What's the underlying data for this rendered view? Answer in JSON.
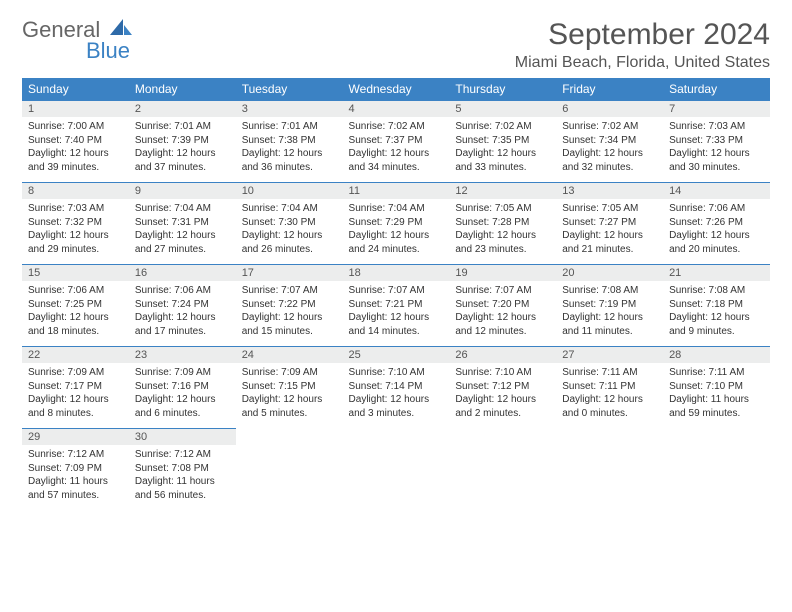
{
  "logo": {
    "text1": "General",
    "text2": "Blue"
  },
  "title": "September 2024",
  "location": "Miami Beach, Florida, United States",
  "colors": {
    "header_bg": "#3b82c4",
    "header_text": "#ffffff",
    "daynum_bg": "#eceded",
    "text": "#333333",
    "title_text": "#555555"
  },
  "weekdays": [
    "Sunday",
    "Monday",
    "Tuesday",
    "Wednesday",
    "Thursday",
    "Friday",
    "Saturday"
  ],
  "weeks": [
    [
      {
        "n": "1",
        "sr": "Sunrise: 7:00 AM",
        "ss": "Sunset: 7:40 PM",
        "d1": "Daylight: 12 hours",
        "d2": "and 39 minutes."
      },
      {
        "n": "2",
        "sr": "Sunrise: 7:01 AM",
        "ss": "Sunset: 7:39 PM",
        "d1": "Daylight: 12 hours",
        "d2": "and 37 minutes."
      },
      {
        "n": "3",
        "sr": "Sunrise: 7:01 AM",
        "ss": "Sunset: 7:38 PM",
        "d1": "Daylight: 12 hours",
        "d2": "and 36 minutes."
      },
      {
        "n": "4",
        "sr": "Sunrise: 7:02 AM",
        "ss": "Sunset: 7:37 PM",
        "d1": "Daylight: 12 hours",
        "d2": "and 34 minutes."
      },
      {
        "n": "5",
        "sr": "Sunrise: 7:02 AM",
        "ss": "Sunset: 7:35 PM",
        "d1": "Daylight: 12 hours",
        "d2": "and 33 minutes."
      },
      {
        "n": "6",
        "sr": "Sunrise: 7:02 AM",
        "ss": "Sunset: 7:34 PM",
        "d1": "Daylight: 12 hours",
        "d2": "and 32 minutes."
      },
      {
        "n": "7",
        "sr": "Sunrise: 7:03 AM",
        "ss": "Sunset: 7:33 PM",
        "d1": "Daylight: 12 hours",
        "d2": "and 30 minutes."
      }
    ],
    [
      {
        "n": "8",
        "sr": "Sunrise: 7:03 AM",
        "ss": "Sunset: 7:32 PM",
        "d1": "Daylight: 12 hours",
        "d2": "and 29 minutes."
      },
      {
        "n": "9",
        "sr": "Sunrise: 7:04 AM",
        "ss": "Sunset: 7:31 PM",
        "d1": "Daylight: 12 hours",
        "d2": "and 27 minutes."
      },
      {
        "n": "10",
        "sr": "Sunrise: 7:04 AM",
        "ss": "Sunset: 7:30 PM",
        "d1": "Daylight: 12 hours",
        "d2": "and 26 minutes."
      },
      {
        "n": "11",
        "sr": "Sunrise: 7:04 AM",
        "ss": "Sunset: 7:29 PM",
        "d1": "Daylight: 12 hours",
        "d2": "and 24 minutes."
      },
      {
        "n": "12",
        "sr": "Sunrise: 7:05 AM",
        "ss": "Sunset: 7:28 PM",
        "d1": "Daylight: 12 hours",
        "d2": "and 23 minutes."
      },
      {
        "n": "13",
        "sr": "Sunrise: 7:05 AM",
        "ss": "Sunset: 7:27 PM",
        "d1": "Daylight: 12 hours",
        "d2": "and 21 minutes."
      },
      {
        "n": "14",
        "sr": "Sunrise: 7:06 AM",
        "ss": "Sunset: 7:26 PM",
        "d1": "Daylight: 12 hours",
        "d2": "and 20 minutes."
      }
    ],
    [
      {
        "n": "15",
        "sr": "Sunrise: 7:06 AM",
        "ss": "Sunset: 7:25 PM",
        "d1": "Daylight: 12 hours",
        "d2": "and 18 minutes."
      },
      {
        "n": "16",
        "sr": "Sunrise: 7:06 AM",
        "ss": "Sunset: 7:24 PM",
        "d1": "Daylight: 12 hours",
        "d2": "and 17 minutes."
      },
      {
        "n": "17",
        "sr": "Sunrise: 7:07 AM",
        "ss": "Sunset: 7:22 PM",
        "d1": "Daylight: 12 hours",
        "d2": "and 15 minutes."
      },
      {
        "n": "18",
        "sr": "Sunrise: 7:07 AM",
        "ss": "Sunset: 7:21 PM",
        "d1": "Daylight: 12 hours",
        "d2": "and 14 minutes."
      },
      {
        "n": "19",
        "sr": "Sunrise: 7:07 AM",
        "ss": "Sunset: 7:20 PM",
        "d1": "Daylight: 12 hours",
        "d2": "and 12 minutes."
      },
      {
        "n": "20",
        "sr": "Sunrise: 7:08 AM",
        "ss": "Sunset: 7:19 PM",
        "d1": "Daylight: 12 hours",
        "d2": "and 11 minutes."
      },
      {
        "n": "21",
        "sr": "Sunrise: 7:08 AM",
        "ss": "Sunset: 7:18 PM",
        "d1": "Daylight: 12 hours",
        "d2": "and 9 minutes."
      }
    ],
    [
      {
        "n": "22",
        "sr": "Sunrise: 7:09 AM",
        "ss": "Sunset: 7:17 PM",
        "d1": "Daylight: 12 hours",
        "d2": "and 8 minutes."
      },
      {
        "n": "23",
        "sr": "Sunrise: 7:09 AM",
        "ss": "Sunset: 7:16 PM",
        "d1": "Daylight: 12 hours",
        "d2": "and 6 minutes."
      },
      {
        "n": "24",
        "sr": "Sunrise: 7:09 AM",
        "ss": "Sunset: 7:15 PM",
        "d1": "Daylight: 12 hours",
        "d2": "and 5 minutes."
      },
      {
        "n": "25",
        "sr": "Sunrise: 7:10 AM",
        "ss": "Sunset: 7:14 PM",
        "d1": "Daylight: 12 hours",
        "d2": "and 3 minutes."
      },
      {
        "n": "26",
        "sr": "Sunrise: 7:10 AM",
        "ss": "Sunset: 7:12 PM",
        "d1": "Daylight: 12 hours",
        "d2": "and 2 minutes."
      },
      {
        "n": "27",
        "sr": "Sunrise: 7:11 AM",
        "ss": "Sunset: 7:11 PM",
        "d1": "Daylight: 12 hours",
        "d2": "and 0 minutes."
      },
      {
        "n": "28",
        "sr": "Sunrise: 7:11 AM",
        "ss": "Sunset: 7:10 PM",
        "d1": "Daylight: 11 hours",
        "d2": "and 59 minutes."
      }
    ],
    [
      {
        "n": "29",
        "sr": "Sunrise: 7:12 AM",
        "ss": "Sunset: 7:09 PM",
        "d1": "Daylight: 11 hours",
        "d2": "and 57 minutes."
      },
      {
        "n": "30",
        "sr": "Sunrise: 7:12 AM",
        "ss": "Sunset: 7:08 PM",
        "d1": "Daylight: 11 hours",
        "d2": "and 56 minutes."
      },
      {
        "empty": true
      },
      {
        "empty": true
      },
      {
        "empty": true
      },
      {
        "empty": true
      },
      {
        "empty": true
      }
    ]
  ]
}
